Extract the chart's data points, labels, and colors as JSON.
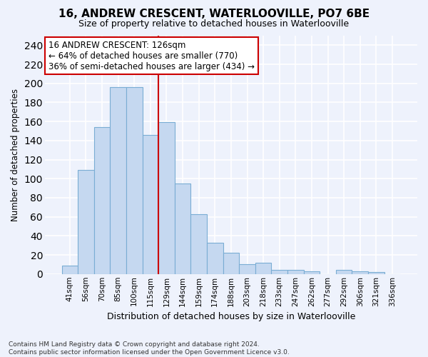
{
  "title1": "16, ANDREW CRESCENT, WATERLOOVILLE, PO7 6BE",
  "title2": "Size of property relative to detached houses in Waterlooville",
  "xlabel": "Distribution of detached houses by size in Waterlooville",
  "ylabel": "Number of detached properties",
  "categories": [
    "41sqm",
    "56sqm",
    "70sqm",
    "85sqm",
    "100sqm",
    "115sqm",
    "129sqm",
    "144sqm",
    "159sqm",
    "174sqm",
    "188sqm",
    "203sqm",
    "218sqm",
    "233sqm",
    "247sqm",
    "262sqm",
    "277sqm",
    "292sqm",
    "306sqm",
    "321sqm",
    "336sqm"
  ],
  "values": [
    9,
    109,
    154,
    196,
    196,
    146,
    159,
    95,
    63,
    33,
    22,
    10,
    12,
    4,
    4,
    3,
    0,
    4,
    3,
    2,
    0
  ],
  "bar_color": "#c5d8f0",
  "bar_edge_color": "#7aadd4",
  "vline_color": "#cc0000",
  "annotation_text": "16 ANDREW CRESCENT: 126sqm\n← 64% of detached houses are smaller (770)\n36% of semi-detached houses are larger (434) →",
  "annotation_box_color": "#ffffff",
  "annotation_box_edge": "#cc0000",
  "ylim": [
    0,
    250
  ],
  "yticks": [
    0,
    20,
    40,
    60,
    80,
    100,
    120,
    140,
    160,
    180,
    200,
    220,
    240
  ],
  "footer": "Contains HM Land Registry data © Crown copyright and database right 2024.\nContains public sector information licensed under the Open Government Licence v3.0.",
  "bg_color": "#eef2fc",
  "grid_color": "#ffffff",
  "title1_fontsize": 11,
  "title2_fontsize": 9
}
